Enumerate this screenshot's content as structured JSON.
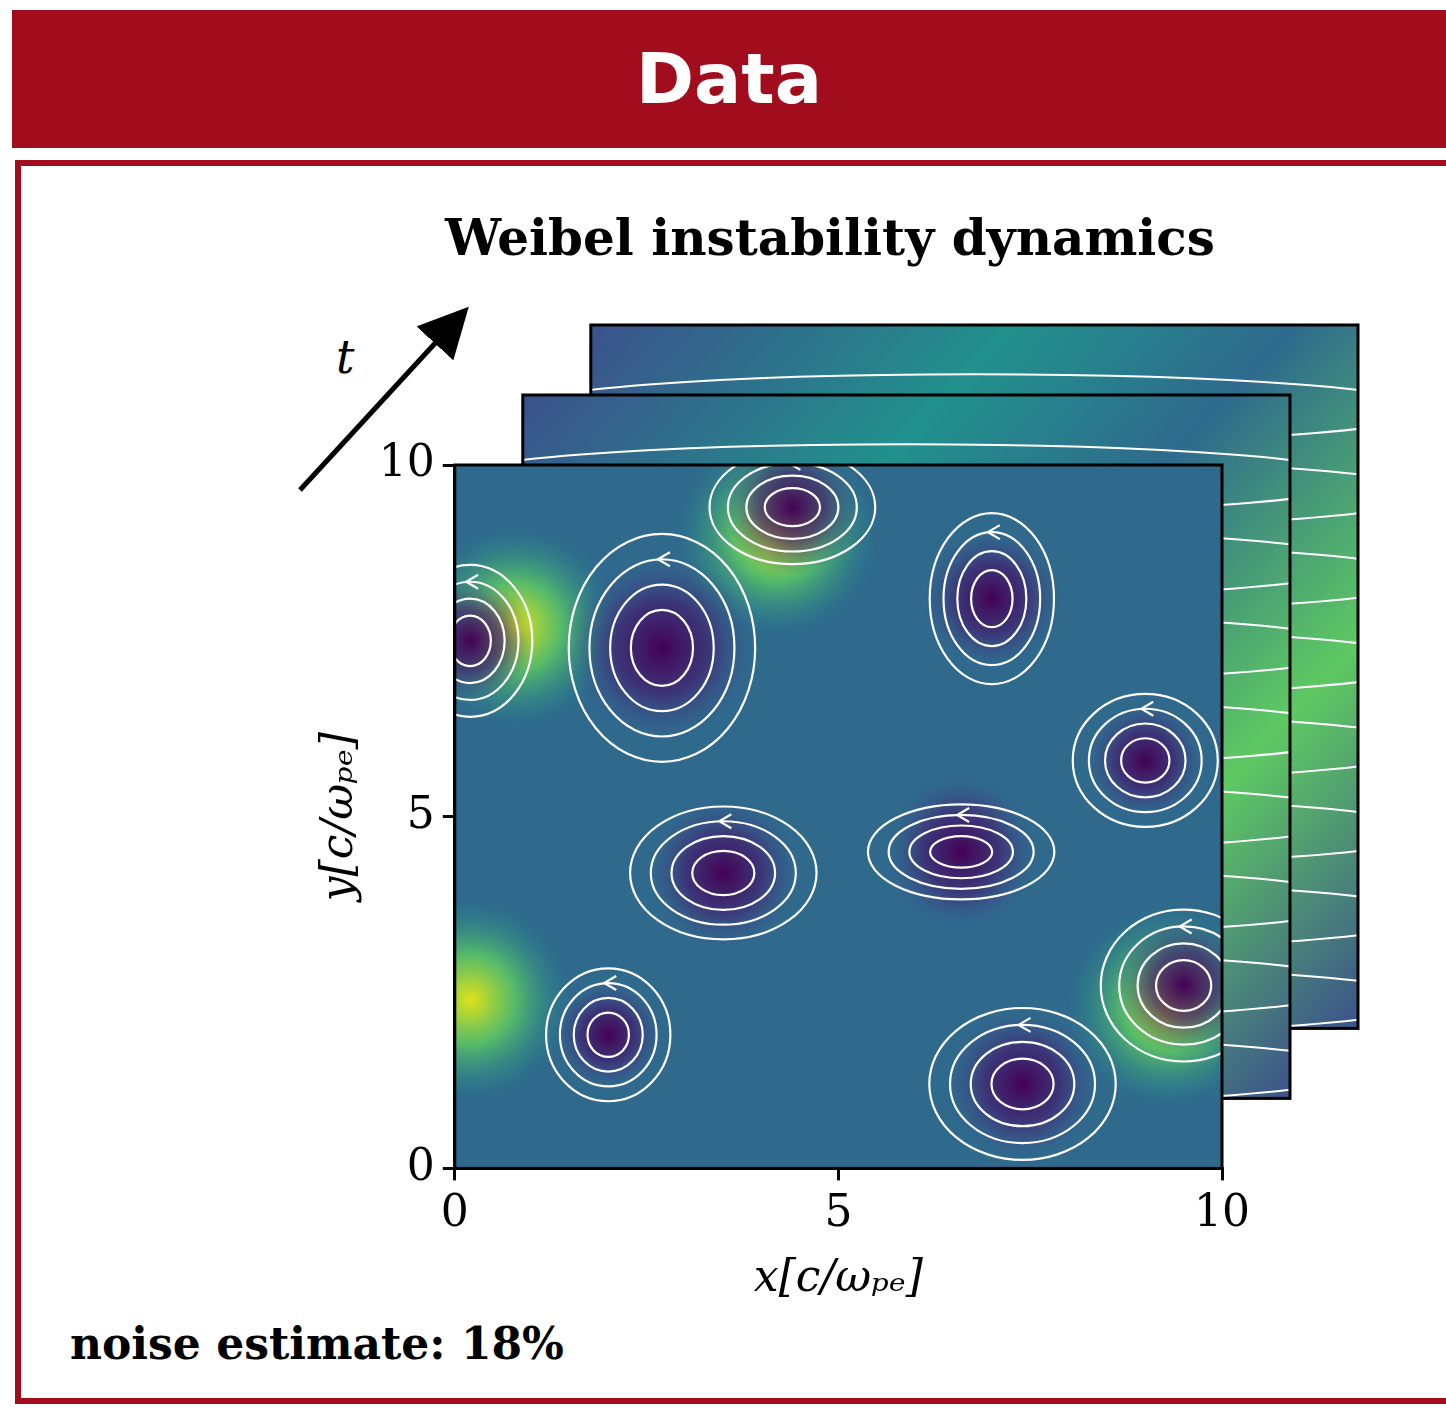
{
  "header": "Data",
  "chart_data": {
    "type": "heatmap_streamlines",
    "title": "Weibel instability dynamics",
    "x_label": "x[c/ωₚₑ]",
    "y_label": "y[c/ωₚₑ]",
    "time_axis_label": "t",
    "xlim": [
      0,
      10
    ],
    "ylim": [
      0,
      10
    ],
    "xticks": [
      0,
      5,
      10
    ],
    "yticks": [
      0,
      5,
      10
    ],
    "grid": false,
    "vortices": [
      {
        "x": 2.7,
        "y": 7.4,
        "rx": 0.9,
        "ry": 1.2
      },
      {
        "x": 4.4,
        "y": 9.4,
        "rx": 0.8,
        "ry": 0.6
      },
      {
        "x": 7.0,
        "y": 8.1,
        "rx": 0.6,
        "ry": 0.9
      },
      {
        "x": 9.0,
        "y": 5.8,
        "rx": 0.7,
        "ry": 0.7
      },
      {
        "x": 3.5,
        "y": 4.2,
        "rx": 0.9,
        "ry": 0.7
      },
      {
        "x": 6.6,
        "y": 4.5,
        "rx": 0.9,
        "ry": 0.5
      },
      {
        "x": 7.4,
        "y": 1.2,
        "rx": 0.9,
        "ry": 0.8
      },
      {
        "x": 2.0,
        "y": 1.9,
        "rx": 0.6,
        "ry": 0.7
      },
      {
        "x": 9.5,
        "y": 2.6,
        "rx": 0.8,
        "ry": 0.8
      },
      {
        "x": 0.2,
        "y": 7.5,
        "rx": 0.6,
        "ry": 0.8
      }
    ],
    "peaks": [
      {
        "x": 0.2,
        "y": 2.4
      },
      {
        "x": 9.3,
        "y": 2.3
      },
      {
        "x": 0.8,
        "y": 7.7
      },
      {
        "x": 4.2,
        "y": 9.0
      }
    ]
  },
  "noise_estimate": "noise estimate: 18%"
}
